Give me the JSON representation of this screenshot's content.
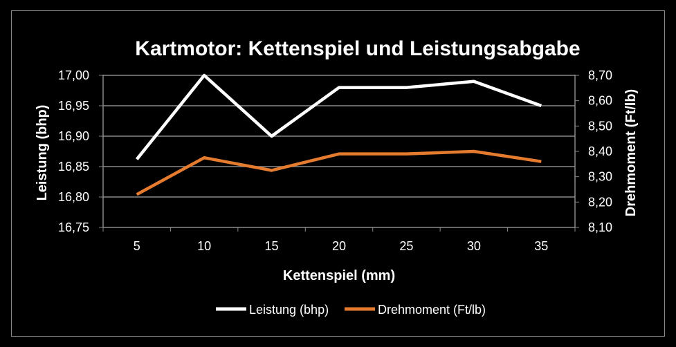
{
  "chart_data": {
    "type": "line",
    "title": "Kartmotor: Kettenspiel und Leistungsabgabe",
    "xlabel": "Kettenspiel (mm)",
    "ylabel_left": "Leistung (bhp)",
    "ylabel_right": "Drehmoment (Ft/lb)",
    "categories": [
      "5",
      "10",
      "15",
      "20",
      "25",
      "30",
      "35"
    ],
    "y_left_ticks": [
      "16,75",
      "16,80",
      "16,85",
      "16,90",
      "16,95",
      "17,00"
    ],
    "y_right_ticks": [
      "8,10",
      "8,20",
      "8,30",
      "8,40",
      "8,50",
      "8,60",
      "8,70"
    ],
    "ylim_left": [
      16.75,
      17.0
    ],
    "ylim_right": [
      8.1,
      8.7
    ],
    "grid": true,
    "legend_position": "bottom",
    "series": [
      {
        "name": "Leistung (bhp)",
        "axis": "left",
        "color": "#ffffff",
        "values": [
          16.862,
          17.0,
          16.9,
          16.98,
          16.98,
          16.99,
          16.95
        ]
      },
      {
        "name": "Drehmoment (Ft/lb)",
        "axis": "right",
        "color": "#e57b2e",
        "values": [
          8.23,
          8.375,
          8.325,
          8.39,
          8.39,
          8.4,
          8.36
        ]
      }
    ]
  }
}
